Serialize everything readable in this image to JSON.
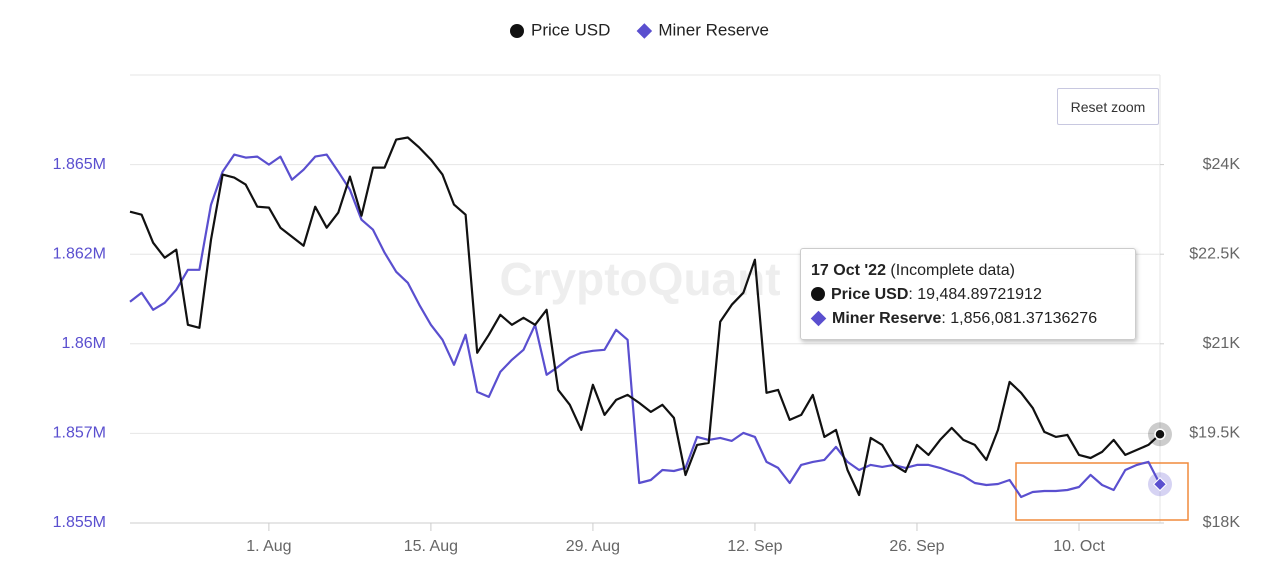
{
  "chart_data": {
    "type": "line",
    "watermark": "CryptoQuant",
    "legend_position": "top",
    "grid": true,
    "x": [
      "2022-07-20",
      "2022-07-21",
      "2022-07-22",
      "2022-07-23",
      "2022-07-24",
      "2022-07-25",
      "2022-07-26",
      "2022-07-27",
      "2022-07-28",
      "2022-07-29",
      "2022-07-30",
      "2022-07-31",
      "2022-08-01",
      "2022-08-02",
      "2022-08-03",
      "2022-08-04",
      "2022-08-05",
      "2022-08-06",
      "2022-08-07",
      "2022-08-08",
      "2022-08-09",
      "2022-08-10",
      "2022-08-11",
      "2022-08-12",
      "2022-08-13",
      "2022-08-14",
      "2022-08-15",
      "2022-08-16",
      "2022-08-17",
      "2022-08-18",
      "2022-08-19",
      "2022-08-20",
      "2022-08-21",
      "2022-08-22",
      "2022-08-23",
      "2022-08-24",
      "2022-08-25",
      "2022-08-26",
      "2022-08-27",
      "2022-08-28",
      "2022-08-29",
      "2022-08-30",
      "2022-08-31",
      "2022-09-01",
      "2022-09-02",
      "2022-09-03",
      "2022-09-04",
      "2022-09-05",
      "2022-09-06",
      "2022-09-07",
      "2022-09-08",
      "2022-09-09",
      "2022-09-10",
      "2022-09-11",
      "2022-09-12",
      "2022-09-13",
      "2022-09-14",
      "2022-09-15",
      "2022-09-16",
      "2022-09-17",
      "2022-09-18",
      "2022-09-19",
      "2022-09-20",
      "2022-09-21",
      "2022-09-22",
      "2022-09-23",
      "2022-09-24",
      "2022-09-25",
      "2022-09-26",
      "2022-09-27",
      "2022-09-28",
      "2022-09-29",
      "2022-09-30",
      "2022-10-01",
      "2022-10-02",
      "2022-10-03",
      "2022-10-04",
      "2022-10-05",
      "2022-10-06",
      "2022-10-07",
      "2022-10-08",
      "2022-10-09",
      "2022-10-10",
      "2022-10-11",
      "2022-10-12",
      "2022-10-13",
      "2022-10-14",
      "2022-10-15",
      "2022-10-16",
      "2022-10-17"
    ],
    "xlim": [
      "2022-07-20",
      "2022-10-17"
    ],
    "xticks": [
      {
        "value": "2022-08-01",
        "label": "1. Aug"
      },
      {
        "value": "2022-08-15",
        "label": "15. Aug"
      },
      {
        "value": "2022-08-29",
        "label": "29. Aug"
      },
      {
        "value": "2022-09-12",
        "label": "12. Sep"
      },
      {
        "value": "2022-09-26",
        "label": "26. Sep"
      },
      {
        "value": "2022-10-10",
        "label": "10. Oct"
      }
    ],
    "ylim": [
      1855000,
      1867500
    ],
    "yticks": [
      {
        "value": 1855000,
        "label": "1.855M"
      },
      {
        "value": 1857500,
        "label": "1.857M"
      },
      {
        "value": 1860000,
        "label": "1.86M"
      },
      {
        "value": 1862500,
        "label": "1.862M"
      },
      {
        "value": 1865000,
        "label": "1.865M"
      }
    ],
    "y2lim": [
      18000,
      25500
    ],
    "y2ticks": [
      {
        "value": 18000,
        "label": "$18K"
      },
      {
        "value": 19500,
        "label": "$19.5K"
      },
      {
        "value": 21000,
        "label": "$21K"
      },
      {
        "value": 22500,
        "label": "$22.5K"
      },
      {
        "value": 24000,
        "label": "$24K"
      }
    ],
    "series": [
      {
        "name": "Price USD",
        "color": "#111111",
        "axis": "y2",
        "marker": "circle",
        "values": [
          23212,
          23162,
          22693,
          22441,
          22576,
          21318,
          21268,
          22743,
          23832,
          23782,
          23665,
          23296,
          23280,
          22944,
          22793,
          22643,
          23296,
          22944,
          23196,
          23799,
          23145,
          23950,
          23950,
          24419,
          24453,
          24285,
          24084,
          23832,
          23330,
          23162,
          20849,
          21151,
          21486,
          21318,
          21436,
          21318,
          21570,
          20229,
          19978,
          19559,
          20313,
          19810,
          20061,
          20145,
          20011,
          19860,
          19978,
          19760,
          18804,
          19307,
          19341,
          21369,
          21654,
          21855,
          22408,
          20179,
          20229,
          19726,
          19810,
          20145,
          19441,
          19559,
          18888,
          18469,
          19425,
          19307,
          18972,
          18855,
          19307,
          19140,
          19391,
          19592,
          19391,
          19307,
          19056,
          19559,
          20363,
          20179,
          19927,
          19525,
          19441,
          19475,
          19140,
          19089,
          19190,
          19391,
          19140,
          19224,
          19307,
          19484.89721912
        ]
      },
      {
        "name": "Miner Reserve",
        "color": "#5a4fcf",
        "marker": "diamond",
        "values": [
          1861173,
          1861424,
          1860949,
          1861145,
          1861508,
          1862066,
          1862066,
          1863882,
          1864803,
          1865278,
          1865194,
          1865222,
          1864999,
          1865222,
          1864580,
          1864859,
          1865222,
          1865278,
          1864803,
          1864300,
          1863462,
          1863183,
          1862541,
          1862010,
          1861703,
          1861089,
          1860530,
          1860111,
          1859413,
          1860251,
          1858659,
          1858519,
          1859217,
          1859553,
          1859832,
          1860530,
          1859134,
          1859357,
          1859608,
          1859748,
          1859804,
          1859832,
          1860390,
          1860111,
          1856117,
          1856201,
          1856480,
          1856452,
          1856536,
          1857402,
          1857318,
          1857374,
          1857290,
          1857514,
          1857402,
          1856704,
          1856536,
          1856117,
          1856620,
          1856704,
          1856760,
          1857123,
          1856704,
          1856480,
          1856620,
          1856564,
          1856620,
          1856536,
          1856620,
          1856620,
          1856536,
          1856424,
          1856313,
          1856117,
          1856061,
          1856089,
          1856201,
          1855726,
          1855866,
          1855894,
          1855894,
          1855922,
          1856005,
          1856341,
          1856061,
          1855922,
          1856480,
          1856620,
          1856704,
          1856081.37136276
        ]
      }
    ],
    "tooltip": {
      "title": "17 Oct '22",
      "note": "(Incomplete data)",
      "rows": [
        {
          "name": "Price USD",
          "value": ": 19,484.89721912"
        },
        {
          "name": "Miner Reserve",
          "value": ": 1,856,081.37136276"
        }
      ]
    },
    "reset_button": "Reset zoom"
  }
}
